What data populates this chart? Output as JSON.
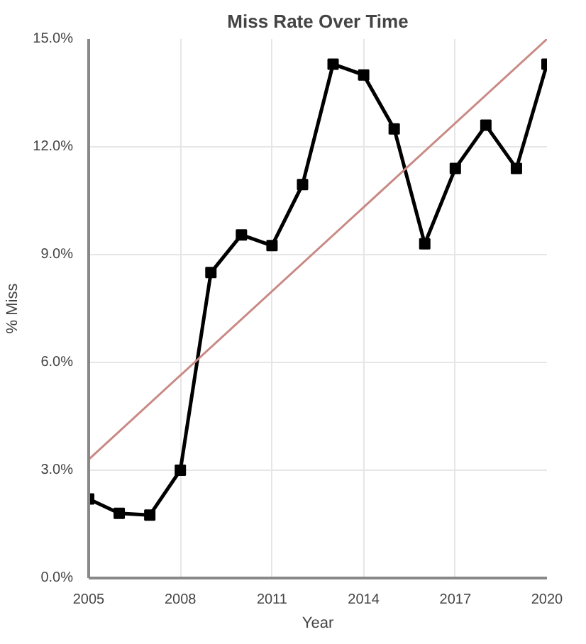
{
  "chart_data": {
    "type": "line",
    "title": "Miss Rate Over Time",
    "xlabel": "Year",
    "ylabel": "% Miss",
    "xlim": [
      2005,
      2020
    ],
    "xticks": [
      2005,
      2008,
      2011,
      2014,
      2017,
      2020
    ],
    "ylim": [
      0,
      15
    ],
    "yticks": [
      {
        "value": 0,
        "label": "0.0%"
      },
      {
        "value": 3,
        "label": "3.0%"
      },
      {
        "value": 6,
        "label": "6.0%"
      },
      {
        "value": 9,
        "label": "9.0%"
      },
      {
        "value": 12,
        "label": "12.0%"
      },
      {
        "value": 15,
        "label": "15.0%"
      }
    ],
    "grid": true,
    "series": [
      {
        "color": "#000000",
        "marker": "square",
        "x": [
          2005,
          2006,
          2007,
          2008,
          2009,
          2010,
          2011,
          2012,
          2013,
          2014,
          2015,
          2016,
          2017,
          2018,
          2019,
          2020
        ],
        "values": [
          2.2,
          1.8,
          1.75,
          3.0,
          8.5,
          9.55,
          9.25,
          10.95,
          14.3,
          14.0,
          12.5,
          9.3,
          11.4,
          12.6,
          11.4,
          14.3
        ]
      },
      {
        "color": "#c98a85",
        "marker": "none",
        "x": [
          2005,
          2020
        ],
        "values": [
          3.3,
          15.0
        ]
      }
    ]
  }
}
